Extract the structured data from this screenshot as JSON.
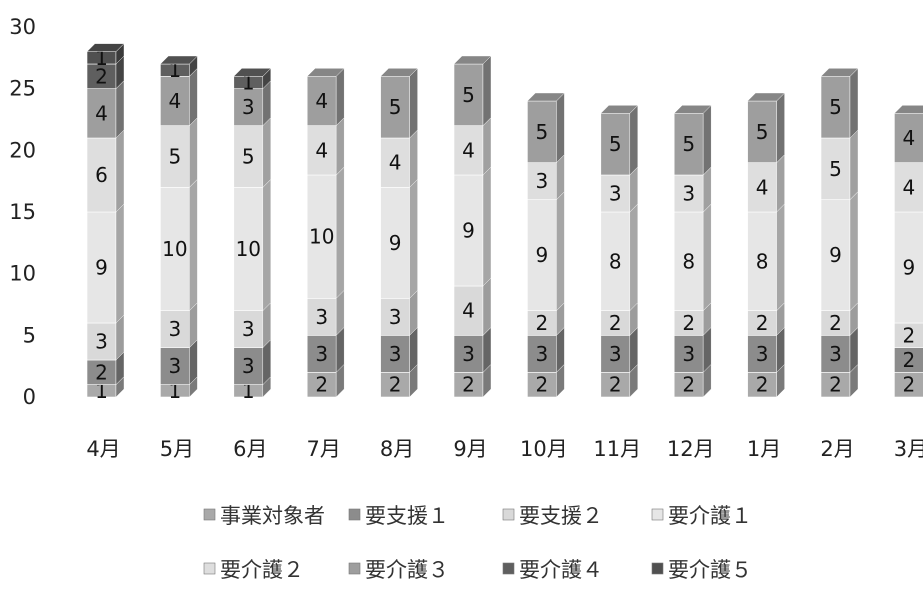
{
  "chart_data": {
    "type": "bar",
    "stacked": true,
    "categories": [
      "4月",
      "5月",
      "6月",
      "7月",
      "8月",
      "9月",
      "10月",
      "11月",
      "12月",
      "1月",
      "2月",
      "3月"
    ],
    "series": [
      {
        "name": "事業対象者",
        "color": "#a9a9a9",
        "values": [
          1,
          1,
          1,
          2,
          2,
          2,
          2,
          2,
          2,
          2,
          2,
          2
        ]
      },
      {
        "name": "要支援１",
        "color": "#8c8c8c",
        "values": [
          2,
          3,
          3,
          3,
          3,
          3,
          3,
          3,
          3,
          3,
          3,
          2
        ]
      },
      {
        "name": "要支援２",
        "color": "#d9d9d9",
        "values": [
          3,
          3,
          3,
          3,
          3,
          4,
          2,
          2,
          2,
          2,
          2,
          2
        ]
      },
      {
        "name": "要介護１",
        "color": "#e6e6e6",
        "values": [
          9,
          10,
          10,
          10,
          9,
          9,
          9,
          8,
          8,
          8,
          9,
          9
        ]
      },
      {
        "name": "要介護２",
        "color": "#dedede",
        "values": [
          6,
          5,
          5,
          4,
          4,
          4,
          3,
          3,
          3,
          4,
          5,
          4
        ]
      },
      {
        "name": "要介護３",
        "color": "#9e9e9e",
        "values": [
          4,
          4,
          3,
          4,
          5,
          5,
          5,
          5,
          5,
          5,
          5,
          4
        ]
      },
      {
        "name": "要介護４",
        "color": "#5f5f5f",
        "values": [
          2,
          1,
          1,
          0,
          0,
          0,
          0,
          0,
          0,
          0,
          0,
          0
        ]
      },
      {
        "name": "要介護５",
        "color": "#505050",
        "values": [
          1,
          0,
          0,
          0,
          0,
          0,
          0,
          0,
          0,
          0,
          0,
          0
        ]
      }
    ],
    "ylim": [
      0,
      30
    ],
    "yticks": [
      "0",
      "5",
      "10",
      "15",
      "20",
      "25",
      "30"
    ],
    "grid": false,
    "legend_position": "bottom"
  }
}
